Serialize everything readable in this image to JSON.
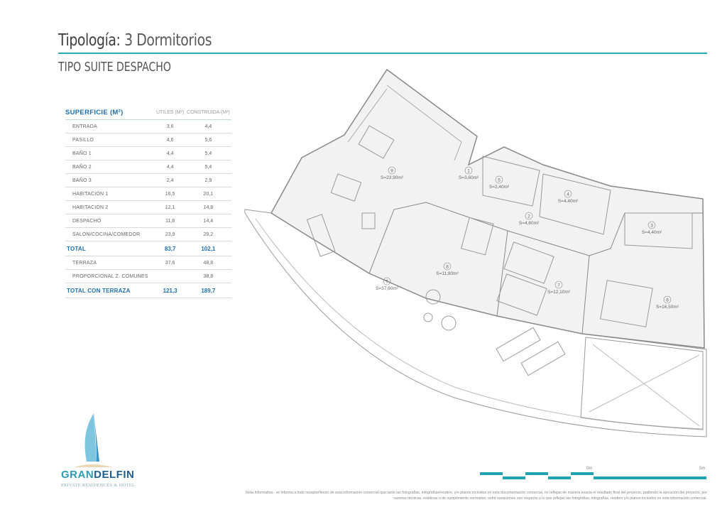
{
  "header": {
    "title_label": "Tipología:",
    "title_value": "3 Dormitorios",
    "subtitle": "TIPO SUITE DESPACHO"
  },
  "table": {
    "heading": "SUPERFICIE (M²)",
    "col_utiles": "ÚTILES (M²)",
    "col_construida": "CONSTRUIDA (M²)",
    "rows": [
      {
        "name": "ENTRADA",
        "utiles": "3,6",
        "construida": "4,4"
      },
      {
        "name": "PASILLO",
        "utiles": "4,6",
        "construida": "5,6"
      },
      {
        "name": "BAÑO 1",
        "utiles": "4,4",
        "construida": "5,4"
      },
      {
        "name": "BAÑO 2",
        "utiles": "4,4",
        "construida": "5,4"
      },
      {
        "name": "BAÑO 3",
        "utiles": "2,4",
        "construida": "2,9"
      },
      {
        "name": "HABITACIÓN 1",
        "utiles": "16,5",
        "construida": "20,1"
      },
      {
        "name": "HABITACIÓN 2",
        "utiles": "12,1",
        "construida": "14,8"
      },
      {
        "name": "DESPACHO",
        "utiles": "11,8",
        "construida": "14,4"
      },
      {
        "name": "SALÓN/COCINA/COMEDOR",
        "utiles": "23,9",
        "construida": "29,2"
      }
    ],
    "total": {
      "name": "TOTAL",
      "utiles": "83,7",
      "construida": "102,1"
    },
    "extra_rows": [
      {
        "name": "TERRAZA",
        "utiles": "37,6",
        "construida": "48,8"
      },
      {
        "name": "PROPORCIONAL Z. COMUNES",
        "utiles": "",
        "construida": "38,8"
      }
    ],
    "grand_total": {
      "name": "TOTAL CON TERRAZA",
      "utiles": "121,3",
      "construida": "189,7"
    }
  },
  "plan": {
    "rooms": [
      {
        "id": "9",
        "area": "S=23,90m²"
      },
      {
        "id": "1",
        "area": "S=3,60m²"
      },
      {
        "id": "5",
        "area": "S=2,40m²"
      },
      {
        "id": "4",
        "area": "S=4,40m²"
      },
      {
        "id": "2",
        "area": "S=4,60m²"
      },
      {
        "id": "3",
        "area": "S=4,40m²"
      },
      {
        "id": "8",
        "area": "S=11,80m²"
      },
      {
        "id": "7",
        "area": "S=12,10m²"
      },
      {
        "id": "6",
        "area": "S=16,50m²"
      },
      {
        "id": "T",
        "area": "S=37,60m²"
      }
    ]
  },
  "scale": {
    "start": "0m",
    "end": "5m"
  },
  "logo": {
    "name_a": "GRAN",
    "name_b": "DELFIN",
    "tagline": "PRIVATE RESIDENCES & HOTEL"
  },
  "note": "Nota Informativa.- se informa a todo receptor/lector de esta información comercial que tanto las fotografías, infografías/renders, y/o planos incluidos en esta documentación comercial, no reflejan de manera exacta el resultado final del proyecto, pudiendo la ejecución del proyecto, por razones técnicas, estéticas o de cumplimiento normativo, sufrir variaciones con respecto a lo que reflejan las fotografías, infografías, renders y/o planos incluidos en esta información comercial.",
  "colors": {
    "accent": "#29a8b8",
    "table_heading": "#1f6ea8"
  }
}
